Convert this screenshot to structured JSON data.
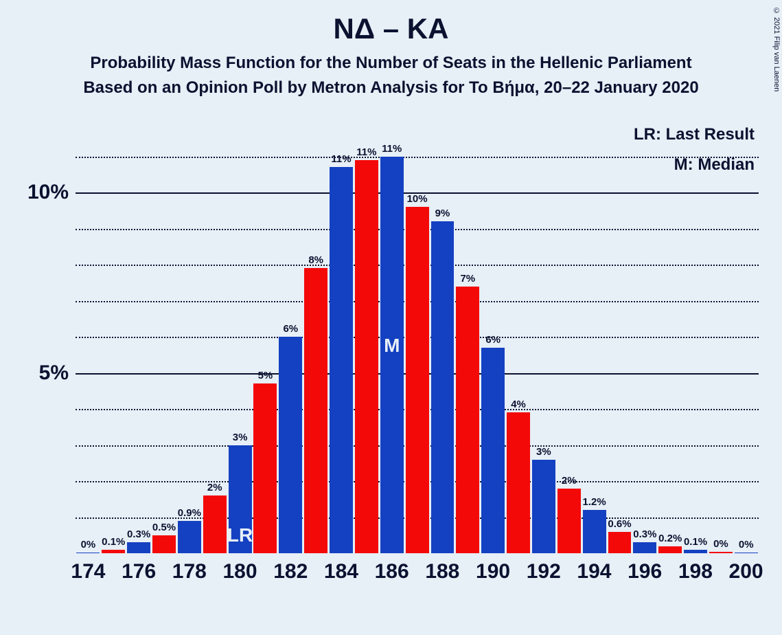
{
  "title": "ΝΔ – ΚΑ",
  "subtitle1": "Probability Mass Function for the Number of Seats in the Hellenic Parliament",
  "subtitle2": "Based on an Opinion Poll by Metron Analysis for Το Βήμα, 20–22 January 2020",
  "legend": {
    "lr": "LR: Last Result",
    "m": "M: Median"
  },
  "copyright": "© 2021 Filip van Laenen",
  "chart": {
    "type": "bar",
    "background_color": "#e7eff7",
    "text_color": "#0a1230",
    "title_fontsize": 42,
    "subtitle_fontsize": 24,
    "axis_fontsize": 30,
    "barlabel_fontsize": 15,
    "annotation_fontsize": 28,
    "ylim": [
      0,
      12
    ],
    "ymajor": [
      5,
      10
    ],
    "yminor": [
      1,
      2,
      3,
      4,
      6,
      7,
      8,
      9,
      11
    ],
    "yticklabels": [
      {
        "v": 5,
        "t": "5%"
      },
      {
        "v": 10,
        "t": "10%"
      }
    ],
    "xticks": [
      "174",
      "176",
      "178",
      "180",
      "182",
      "184",
      "186",
      "188",
      "190",
      "192",
      "194",
      "196",
      "198",
      "200"
    ],
    "colors": {
      "blue": "#1441c1",
      "red": "#f40909"
    },
    "bars": [
      {
        "x": 174,
        "v": 0.02,
        "label": "0%",
        "color": "blue"
      },
      {
        "x": 175,
        "v": 0.1,
        "label": "0.1%",
        "color": "red"
      },
      {
        "x": 176,
        "v": 0.3,
        "label": "0.3%",
        "color": "blue"
      },
      {
        "x": 177,
        "v": 0.5,
        "label": "0.5%",
        "color": "red"
      },
      {
        "x": 178,
        "v": 0.9,
        "label": "0.9%",
        "color": "blue"
      },
      {
        "x": 179,
        "v": 1.6,
        "label": "2%",
        "color": "red"
      },
      {
        "x": 180,
        "v": 3.0,
        "label": "3%",
        "color": "blue",
        "annotation": "LR",
        "anno_pos": "bottom"
      },
      {
        "x": 181,
        "v": 4.7,
        "label": "5%",
        "color": "red"
      },
      {
        "x": 182,
        "v": 6.0,
        "label": "6%",
        "color": "blue"
      },
      {
        "x": 183,
        "v": 7.9,
        "label": "8%",
        "color": "red"
      },
      {
        "x": 184,
        "v": 10.7,
        "label": "11%",
        "color": "blue"
      },
      {
        "x": 185,
        "v": 10.9,
        "label": "11%",
        "color": "red"
      },
      {
        "x": 186,
        "v": 11.0,
        "label": "11%",
        "color": "blue",
        "annotation": "M",
        "anno_pos": "mid"
      },
      {
        "x": 187,
        "v": 9.6,
        "label": "10%",
        "color": "red"
      },
      {
        "x": 188,
        "v": 9.2,
        "label": "9%",
        "color": "blue"
      },
      {
        "x": 189,
        "v": 7.4,
        "label": "7%",
        "color": "red"
      },
      {
        "x": 190,
        "v": 5.7,
        "label": "6%",
        "color": "blue"
      },
      {
        "x": 191,
        "v": 3.9,
        "label": "4%",
        "color": "red"
      },
      {
        "x": 192,
        "v": 2.6,
        "label": "3%",
        "color": "blue"
      },
      {
        "x": 193,
        "v": 1.8,
        "label": "2%",
        "color": "red"
      },
      {
        "x": 194,
        "v": 1.2,
        "label": "1.2%",
        "color": "blue"
      },
      {
        "x": 195,
        "v": 0.6,
        "label": "0.6%",
        "color": "red"
      },
      {
        "x": 196,
        "v": 0.3,
        "label": "0.3%",
        "color": "blue"
      },
      {
        "x": 197,
        "v": 0.2,
        "label": "0.2%",
        "color": "red"
      },
      {
        "x": 198,
        "v": 0.1,
        "label": "0.1%",
        "color": "blue"
      },
      {
        "x": 199,
        "v": 0.03,
        "label": "0%",
        "color": "red"
      },
      {
        "x": 200,
        "v": 0.01,
        "label": "0%",
        "color": "blue"
      }
    ]
  }
}
